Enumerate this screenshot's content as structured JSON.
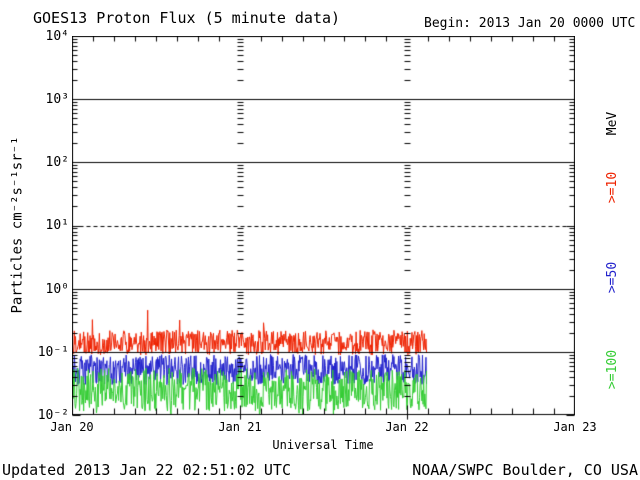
{
  "header": {
    "title": "GOES13 Proton Flux (5 minute data)",
    "begin_label": "Begin: 2013 Jan 20 0000 UTC"
  },
  "axes": {
    "y_title": "Particles cm⁻²s⁻¹sr⁻¹",
    "y_ticks": [
      "10⁴",
      "10³",
      "10²",
      "10¹",
      "10⁰",
      "10⁻¹",
      "10⁻²"
    ],
    "x_ticks": [
      "Jan 20",
      "Jan 21",
      "Jan 22",
      "Jan 23"
    ],
    "x_title": "Universal Time",
    "unit_label": "MeV"
  },
  "legend": [
    {
      "label": ">=10",
      "color": "#ee2200"
    },
    {
      "label": ">=50",
      "color": "#2222cc"
    },
    {
      "label": ">=100",
      "color": "#33cc33"
    }
  ],
  "footer": {
    "updated": "Updated 2013 Jan 22 02:51:02 UTC",
    "source": "NOAA/SWPC Boulder, CO USA"
  },
  "chart_data": {
    "type": "line",
    "title": "GOES13 Proton Flux (5 minute data)",
    "xlabel": "Universal Time",
    "ylabel": "Particles cm⁻²s⁻¹sr⁻¹",
    "x_categories": [
      "Jan 20",
      "Jan 21",
      "Jan 22",
      "Jan 23"
    ],
    "x_range_days": 3,
    "ylim_log10": [
      -2,
      4
    ],
    "y_solid_gridlines_log10": [
      3,
      2,
      0,
      -1
    ],
    "y_dashed_gridline_log10": 1,
    "day_gridline_positions": [
      1,
      2
    ],
    "samples_per_day": 288,
    "data_end_day_fraction": 2.117,
    "hour_tick_interval_hours": 3,
    "seed": 20130122,
    "series": [
      {
        "name": ">=10 MeV",
        "color": "#ee2200",
        "log10_center": -0.85,
        "log10_spread": 0.2,
        "spike_prob": 0.012,
        "spike_magnitude": 0.35,
        "fixed_spikes": [
          {
            "day": 0.45,
            "log10": -0.34
          }
        ],
        "approx_range": [
          0.07,
          0.46
        ]
      },
      {
        "name": ">=50 MeV",
        "color": "#2222cc",
        "log10_center": -1.28,
        "log10_spread": 0.24,
        "spike_prob": 0.0,
        "spike_magnitude": 0,
        "fixed_spikes": [],
        "approx_range": [
          0.03,
          0.12
        ]
      },
      {
        "name": ">=100 MeV",
        "color": "#33cc33",
        "log10_center": -1.6,
        "log10_spread": 0.34,
        "spike_prob": 0.04,
        "spike_magnitude": -0.35,
        "fixed_spikes": [],
        "approx_range": [
          0.01,
          0.065
        ]
      }
    ]
  }
}
